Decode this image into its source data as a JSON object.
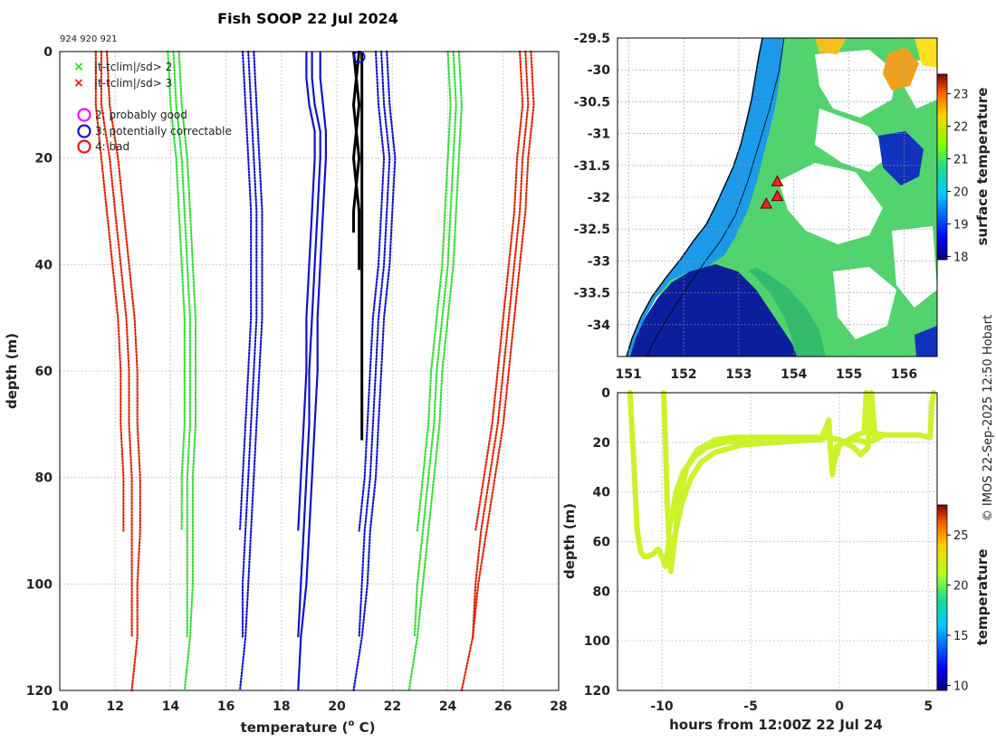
{
  "page": {
    "credit": "© IMOS 22-Sep-2025 12:50 Hobart"
  },
  "chart_data": [
    {
      "type": "line",
      "id": "profile",
      "title": "Fish SOOP 22 Jul 2024",
      "id_label": "924 920 921",
      "xlabel": "temperature (",
      "xlabel_sup": "o",
      "xlabel_tail": " C)",
      "ylabel": "depth (m)",
      "xlim": [
        10,
        28
      ],
      "ylim": [
        120,
        0
      ],
      "xticks": [
        10,
        12,
        14,
        16,
        18,
        20,
        22,
        24,
        26,
        28
      ],
      "yticks": [
        0,
        20,
        40,
        60,
        80,
        100,
        120
      ],
      "grid": true,
      "legend": {
        "items": [
          {
            "marker": "x",
            "color": "#22dd22",
            "label": "|t-tclim|/sd> 2"
          },
          {
            "marker": "x",
            "color": "#ee1111",
            "label": "|t-tclim|/sd> 3"
          },
          {
            "marker": "o",
            "color": "#ee11ee",
            "label": "2: probably good"
          },
          {
            "marker": "o",
            "color": "#1111cc",
            "label": "3: potentially correctable"
          },
          {
            "marker": "o",
            "color": "#ee1111",
            "label": "4: bad"
          }
        ]
      },
      "series": [
        {
          "name": "clim-3sd-low-a",
          "color": "#dd2200",
          "style": "dotted",
          "depths": [
            0,
            10,
            20,
            30,
            40,
            50,
            60,
            70,
            80,
            90
          ],
          "temps": [
            11.3,
            11.3,
            11.5,
            11.7,
            11.9,
            12.1,
            12.2,
            12.2,
            12.3,
            12.3
          ]
        },
        {
          "name": "clim-3sd-low-b",
          "color": "#dd2200",
          "style": "dotted",
          "depths": [
            0,
            10,
            20,
            30,
            40,
            50,
            60,
            70,
            80,
            90,
            100,
            110
          ],
          "temps": [
            11.5,
            11.5,
            11.8,
            12.0,
            12.2,
            12.4,
            12.5,
            12.5,
            12.6,
            12.6,
            12.6,
            12.6
          ]
        },
        {
          "name": "clim-3sd-low-c",
          "color": "#dd2200",
          "style": "dotted",
          "depths": [
            0,
            10,
            20,
            30,
            40,
            50,
            60,
            70,
            80,
            90,
            100,
            110,
            120
          ],
          "temps": [
            11.7,
            11.8,
            12.1,
            12.3,
            12.5,
            12.7,
            12.8,
            12.8,
            12.9,
            12.9,
            12.8,
            12.8,
            12.6
          ]
        },
        {
          "name": "clim-2sd-low-a",
          "color": "#33dd33",
          "style": "dotted",
          "depths": [
            0,
            10,
            20,
            30,
            40,
            50,
            60,
            70,
            80,
            90
          ],
          "temps": [
            13.9,
            14.0,
            14.2,
            14.3,
            14.4,
            14.5,
            14.5,
            14.5,
            14.4,
            14.4
          ]
        },
        {
          "name": "clim-2sd-low-b",
          "color": "#33dd33",
          "style": "dotted",
          "depths": [
            0,
            10,
            20,
            30,
            40,
            50,
            60,
            70,
            80,
            90,
            100,
            110
          ],
          "temps": [
            14.1,
            14.2,
            14.4,
            14.5,
            14.6,
            14.7,
            14.7,
            14.7,
            14.6,
            14.6,
            14.6,
            14.6
          ]
        },
        {
          "name": "clim-2sd-low-c",
          "color": "#33dd33",
          "style": "dotted",
          "depths": [
            0,
            10,
            20,
            30,
            40,
            50,
            60,
            70,
            80,
            90,
            100,
            110,
            120
          ],
          "temps": [
            14.3,
            14.4,
            14.6,
            14.7,
            14.8,
            14.9,
            14.9,
            14.9,
            14.8,
            14.8,
            14.8,
            14.7,
            14.5
          ]
        },
        {
          "name": "clim-1sd-low-a",
          "color": "#1111cc",
          "style": "dotted",
          "depths": [
            0,
            10,
            20,
            30,
            40,
            50,
            60,
            70,
            80,
            90
          ],
          "temps": [
            16.6,
            16.7,
            16.8,
            16.9,
            16.9,
            16.9,
            16.8,
            16.7,
            16.6,
            16.5
          ]
        },
        {
          "name": "clim-1sd-low-b",
          "color": "#1111cc",
          "style": "dotted",
          "depths": [
            0,
            10,
            20,
            30,
            40,
            50,
            60,
            70,
            80,
            90,
            100,
            110
          ],
          "temps": [
            16.8,
            16.9,
            17.0,
            17.1,
            17.1,
            17.1,
            17.0,
            16.9,
            16.8,
            16.7,
            16.6,
            16.6
          ]
        },
        {
          "name": "clim-1sd-low-c",
          "color": "#1111cc",
          "style": "dotted",
          "depths": [
            0,
            10,
            20,
            30,
            40,
            50,
            60,
            70,
            80,
            90,
            100,
            110,
            120
          ],
          "temps": [
            17.0,
            17.1,
            17.2,
            17.3,
            17.3,
            17.3,
            17.2,
            17.1,
            17.0,
            16.9,
            16.8,
            16.7,
            16.5
          ]
        },
        {
          "name": "clim-mean-a",
          "color": "#1111cc",
          "style": "solid",
          "depths": [
            0,
            5,
            10,
            15,
            20,
            30,
            40,
            50,
            60,
            70,
            80,
            90
          ],
          "temps": [
            18.9,
            18.9,
            19.0,
            19.2,
            19.2,
            19.1,
            19.0,
            18.9,
            18.9,
            18.8,
            18.7,
            18.6
          ]
        },
        {
          "name": "clim-mean-b",
          "color": "#1111cc",
          "style": "solid",
          "depths": [
            0,
            5,
            10,
            15,
            20,
            30,
            40,
            50,
            60,
            70,
            80,
            90,
            100,
            110
          ],
          "temps": [
            19.1,
            19.1,
            19.2,
            19.4,
            19.4,
            19.3,
            19.2,
            19.1,
            19.0,
            19.0,
            18.9,
            18.8,
            18.7,
            18.6
          ]
        },
        {
          "name": "clim-mean-c",
          "color": "#1111cc",
          "style": "solid",
          "depths": [
            0,
            5,
            10,
            15,
            20,
            30,
            40,
            50,
            60,
            70,
            80,
            90,
            100,
            110,
            120
          ],
          "temps": [
            19.4,
            19.4,
            19.5,
            19.6,
            19.6,
            19.5,
            19.4,
            19.3,
            19.3,
            19.2,
            19.1,
            19.0,
            18.9,
            18.7,
            18.6
          ]
        },
        {
          "name": "clim-1sd-high-a",
          "color": "#1111cc",
          "style": "dotted",
          "depths": [
            0,
            10,
            20,
            30,
            40,
            50,
            60,
            70,
            80,
            90
          ],
          "temps": [
            21.4,
            21.5,
            21.7,
            21.6,
            21.5,
            21.3,
            21.2,
            21.1,
            21.0,
            20.8
          ]
        },
        {
          "name": "clim-1sd-high-b",
          "color": "#1111cc",
          "style": "dotted",
          "depths": [
            0,
            10,
            20,
            30,
            40,
            50,
            60,
            70,
            80,
            90,
            100,
            110
          ],
          "temps": [
            21.6,
            21.7,
            21.9,
            21.8,
            21.7,
            21.5,
            21.4,
            21.3,
            21.2,
            21.0,
            20.9,
            20.8
          ]
        },
        {
          "name": "clim-1sd-high-c",
          "color": "#1111cc",
          "style": "dotted",
          "depths": [
            0,
            10,
            20,
            30,
            40,
            50,
            60,
            70,
            80,
            90,
            100,
            110,
            120
          ],
          "temps": [
            21.8,
            21.9,
            22.1,
            22.0,
            21.9,
            21.7,
            21.6,
            21.5,
            21.4,
            21.2,
            21.1,
            20.9,
            20.6
          ]
        },
        {
          "name": "clim-2sd-high-a",
          "color": "#33dd33",
          "style": "dotted",
          "depths": [
            0,
            10,
            20,
            30,
            40,
            50,
            60,
            70,
            80,
            90
          ],
          "temps": [
            24.0,
            24.1,
            24.0,
            23.9,
            23.8,
            23.6,
            23.4,
            23.3,
            23.1,
            22.9
          ]
        },
        {
          "name": "clim-2sd-high-b",
          "color": "#33dd33",
          "style": "dotted",
          "depths": [
            0,
            10,
            20,
            30,
            40,
            50,
            60,
            70,
            80,
            90,
            100,
            110
          ],
          "temps": [
            24.2,
            24.3,
            24.2,
            24.1,
            24.0,
            23.8,
            23.6,
            23.5,
            23.3,
            23.1,
            22.9,
            22.8
          ]
        },
        {
          "name": "clim-2sd-high-c",
          "color": "#33dd33",
          "style": "dotted",
          "depths": [
            0,
            10,
            20,
            30,
            40,
            50,
            60,
            70,
            80,
            90,
            100,
            110,
            120
          ],
          "temps": [
            24.4,
            24.5,
            24.4,
            24.3,
            24.2,
            24.0,
            23.8,
            23.7,
            23.5,
            23.3,
            23.1,
            22.9,
            22.6
          ]
        },
        {
          "name": "clim-3sd-high-a",
          "color": "#dd2200",
          "style": "dotted",
          "depths": [
            0,
            10,
            20,
            30,
            40,
            50,
            60,
            70,
            80,
            90
          ],
          "temps": [
            26.6,
            26.7,
            26.5,
            26.4,
            26.2,
            26.0,
            25.8,
            25.6,
            25.3,
            25.0
          ]
        },
        {
          "name": "clim-3sd-high-b",
          "color": "#dd2200",
          "style": "dotted",
          "depths": [
            0,
            10,
            20,
            30,
            40,
            50,
            60,
            70,
            80,
            90,
            100,
            110
          ],
          "temps": [
            26.8,
            26.9,
            26.7,
            26.6,
            26.4,
            26.2,
            26.0,
            25.8,
            25.5,
            25.2,
            25.0,
            24.9
          ]
        },
        {
          "name": "clim-3sd-high-c",
          "color": "#dd2200",
          "style": "dotted",
          "depths": [
            0,
            10,
            20,
            30,
            40,
            50,
            60,
            70,
            80,
            90,
            100,
            110,
            120
          ],
          "temps": [
            27.0,
            27.1,
            26.9,
            26.8,
            26.6,
            26.4,
            26.2,
            26.0,
            25.7,
            25.4,
            25.1,
            24.9,
            24.5
          ]
        },
        {
          "name": "obs-profile-1",
          "color": "#000000",
          "style": "solid-thick",
          "depths": [
            0,
            5,
            10,
            15,
            20,
            25,
            30,
            34
          ],
          "temps": [
            20.6,
            20.7,
            20.6,
            20.7,
            20.6,
            20.7,
            20.6,
            20.6
          ]
        },
        {
          "name": "obs-profile-2",
          "color": "#000000",
          "style": "solid-thick",
          "depths": [
            0,
            5,
            10,
            15,
            20,
            25,
            30,
            35,
            41
          ],
          "temps": [
            20.8,
            20.7,
            20.8,
            20.7,
            20.8,
            20.7,
            20.8,
            20.8,
            20.8
          ]
        },
        {
          "name": "obs-profile-3",
          "color": "#000000",
          "style": "solid-thick",
          "depths": [
            0,
            10,
            20,
            30,
            40,
            50,
            60,
            73
          ],
          "temps": [
            20.9,
            20.9,
            20.9,
            20.9,
            20.9,
            20.9,
            20.9,
            20.9
          ]
        }
      ],
      "flag_points": [
        {
          "temp": 20.8,
          "depth": 1,
          "color": "#1111cc",
          "label": "3: potentially correctable"
        }
      ]
    },
    {
      "type": "heatmap",
      "id": "map",
      "colorbar_label": "surface temperature",
      "xlim": [
        150.8,
        156.6
      ],
      "ylim": [
        -34.5,
        -29.5
      ],
      "xticks": [
        151,
        152,
        153,
        154,
        155,
        156
      ],
      "yticks": [
        -29.5,
        -30,
        -30.5,
        -31,
        -31.5,
        -32,
        -32.5,
        -33,
        -33.5,
        -34
      ],
      "colorbar_ticks": [
        18,
        19,
        20,
        21,
        22,
        23
      ],
      "colorbar_range": [
        17.9,
        23.6
      ],
      "drop_sites": [
        {
          "lon": 153.7,
          "lat": -31.75
        },
        {
          "lon": 153.7,
          "lat": -31.98
        },
        {
          "lon": 153.5,
          "lat": -32.1
        }
      ]
    },
    {
      "type": "scatter",
      "id": "timeseries",
      "xlabel": "hours from 12:00Z 22 Jul 24",
      "ylabel": "depth (m)",
      "colorbar_label": "temperature",
      "xlim": [
        -12.5,
        5.5
      ],
      "ylim": [
        120,
        0
      ],
      "xticks": [
        -10,
        -5,
        0,
        5
      ],
      "yticks": [
        0,
        20,
        40,
        60,
        80,
        100,
        120
      ],
      "colorbar_ticks": [
        10,
        15,
        20,
        25
      ],
      "colorbar_range": [
        9.5,
        28
      ],
      "point_color": "#ccf22a",
      "tracks": [
        {
          "hours": [
            -11.8,
            -11.6,
            -11.4,
            -11.2,
            -11.0,
            -10.8,
            -10.5,
            -10.2,
            -10.0,
            -9.8,
            -9.6
          ],
          "depths": [
            0,
            25,
            55,
            64,
            66,
            66,
            65,
            63,
            66,
            70,
            60
          ]
        },
        {
          "hours": [
            -9.9,
            -9.8,
            -9.7,
            -9.5,
            -9.3,
            -9.0,
            -8.6,
            -8.0,
            -7.0,
            -6.0,
            -4.0,
            -2.0,
            -1.0,
            -0.7,
            -0.6,
            -0.5,
            -0.3,
            0.0,
            1.0,
            1.4,
            1.5,
            1.6,
            1.7,
            2.5,
            3.5,
            4.5,
            5.0,
            5.1,
            5.2,
            5.3
          ],
          "depths": [
            0,
            20,
            45,
            72,
            60,
            42,
            30,
            23,
            19,
            18,
            18,
            18,
            18,
            13,
            11,
            23,
            28,
            21,
            17,
            16,
            0,
            5,
            16,
            17,
            17,
            17,
            18,
            18,
            5,
            0
          ]
        },
        {
          "hours": [
            -9.6,
            -9.4,
            -9.2,
            -8.8,
            -8.2,
            -7.5,
            -6.5,
            -5.0,
            -3.0,
            -1.0,
            -0.6,
            -0.4,
            -0.2,
            0.5,
            1.0,
            1.5,
            2.0,
            2.5
          ],
          "depths": [
            55,
            48,
            40,
            32,
            26,
            22,
            20,
            19,
            19,
            19,
            13,
            33,
            22,
            19,
            19,
            20,
            19,
            17
          ]
        },
        {
          "hours": [
            -9.5,
            -9.2,
            -8.9,
            -8.4,
            -7.8,
            -7.0,
            -5.5,
            -3.5,
            -1.5,
            -0.6,
            0.0,
            0.8,
            1.2,
            1.6,
            1.8,
            2.0
          ],
          "depths": [
            65,
            55,
            45,
            35,
            28,
            24,
            21,
            20,
            19,
            18,
            19,
            22,
            25,
            22,
            0,
            18
          ]
        }
      ]
    }
  ]
}
